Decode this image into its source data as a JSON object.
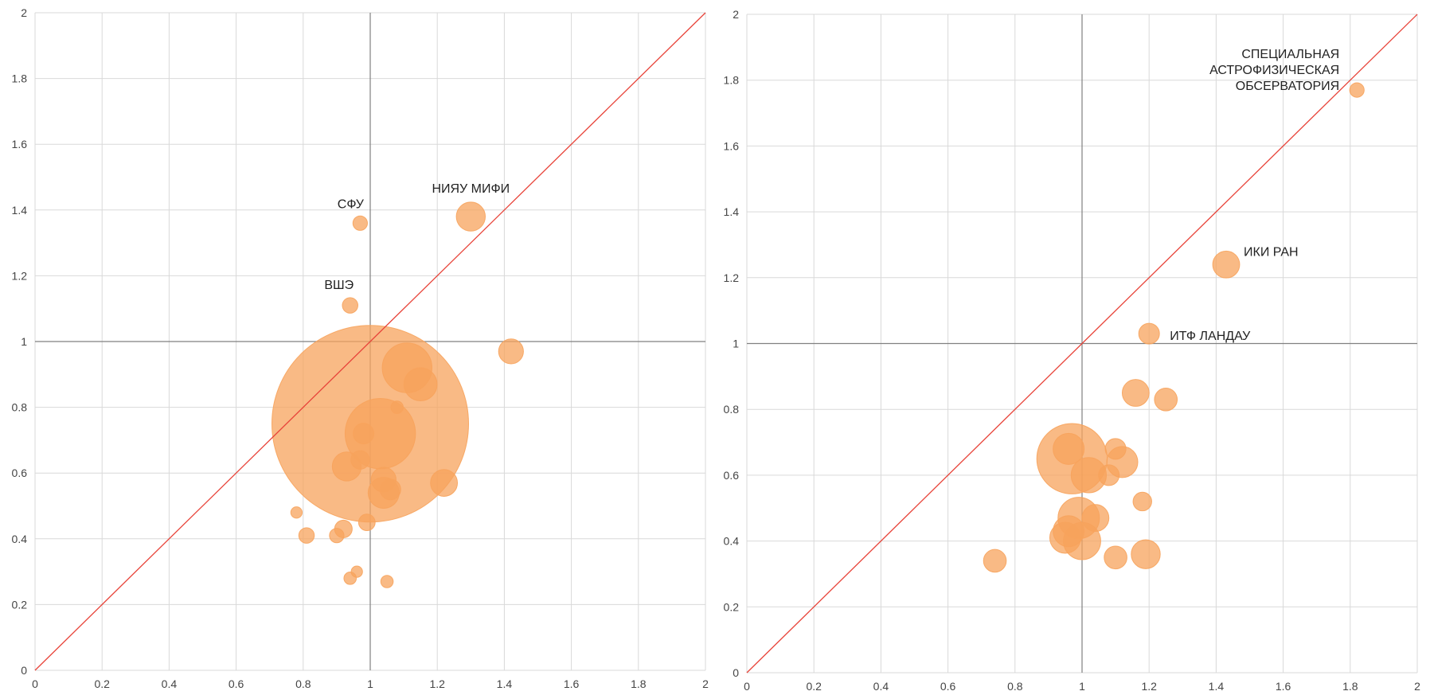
{
  "chart_data": [
    {
      "type": "scatter",
      "title": "",
      "xlabel": "",
      "ylabel": "",
      "xlim": [
        0,
        2
      ],
      "ylim": [
        0,
        2
      ],
      "xticks": [
        "0",
        "0.2",
        "0.4",
        "0.6",
        "0.8",
        "1",
        "1.2",
        "1.4",
        "1.6",
        "1.8",
        "2"
      ],
      "yticks": [
        "0",
        "0.2",
        "0.4",
        "0.6",
        "0.8",
        "1",
        "1.2",
        "1.4",
        "1.6",
        "1.8",
        "2"
      ],
      "grid": true,
      "reference_lines": {
        "diagonal": "y = x",
        "x": 1,
        "y": 1
      },
      "colors": {
        "bubble": "#f7a35c",
        "diagonal": "#e8443a",
        "reference": "#808080",
        "grid": "#d9d9d9"
      },
      "points": [
        {
          "x": 1.0,
          "y": 0.75,
          "size": 0.95
        },
        {
          "x": 1.03,
          "y": 0.72,
          "size": 0.34
        },
        {
          "x": 1.11,
          "y": 0.92,
          "size": 0.24
        },
        {
          "x": 1.15,
          "y": 0.87,
          "size": 0.16
        },
        {
          "x": 1.42,
          "y": 0.97,
          "size": 0.12
        },
        {
          "x": 1.3,
          "y": 1.38,
          "label": "НИЯУ МИФИ",
          "size": 0.14
        },
        {
          "x": 0.97,
          "y": 1.36,
          "label": "СФУ",
          "size": 0.07
        },
        {
          "x": 0.94,
          "y": 1.11,
          "label": "ВШЭ",
          "size": 0.075
        },
        {
          "x": 1.22,
          "y": 0.57,
          "size": 0.13
        },
        {
          "x": 1.08,
          "y": 0.8,
          "size": 0.06
        },
        {
          "x": 0.98,
          "y": 0.72,
          "size": 0.1
        },
        {
          "x": 0.93,
          "y": 0.62,
          "size": 0.14
        },
        {
          "x": 0.97,
          "y": 0.64,
          "size": 0.09
        },
        {
          "x": 1.04,
          "y": 0.58,
          "size": 0.12
        },
        {
          "x": 1.04,
          "y": 0.54,
          "size": 0.15
        },
        {
          "x": 1.06,
          "y": 0.55,
          "size": 0.1
        },
        {
          "x": 0.78,
          "y": 0.48,
          "size": 0.055
        },
        {
          "x": 0.81,
          "y": 0.41,
          "size": 0.075
        },
        {
          "x": 0.9,
          "y": 0.41,
          "size": 0.07
        },
        {
          "x": 0.92,
          "y": 0.43,
          "size": 0.085
        },
        {
          "x": 0.99,
          "y": 0.45,
          "size": 0.08
        },
        {
          "x": 0.96,
          "y": 0.3,
          "size": 0.055
        },
        {
          "x": 0.94,
          "y": 0.28,
          "size": 0.06
        },
        {
          "x": 1.05,
          "y": 0.27,
          "size": 0.06
        }
      ]
    },
    {
      "type": "scatter",
      "title": "",
      "xlabel": "",
      "ylabel": "",
      "xlim": [
        0,
        2
      ],
      "ylim": [
        0,
        2
      ],
      "xticks": [
        "0",
        "0.2",
        "0.4",
        "0.6",
        "0.8",
        "1",
        "1.2",
        "1.4",
        "1.6",
        "1.8",
        "2"
      ],
      "yticks": [
        "0",
        "0.2",
        "0.4",
        "0.6",
        "0.8",
        "1",
        "1.2",
        "1.4",
        "1.6",
        "1.8",
        "2"
      ],
      "grid": true,
      "reference_lines": {
        "diagonal": "y = x",
        "x": 1,
        "y": 1
      },
      "colors": {
        "bubble": "#f7a35c",
        "diagonal": "#e8443a",
        "reference": "#808080",
        "grid": "#d9d9d9"
      },
      "points": [
        {
          "x": 1.82,
          "y": 1.77,
          "label": [
            "СПЕЦИАЛЬНАЯ",
            "АСТРОФИЗИЧЕСКАЯ",
            "ОБСЕРВАТОРИЯ"
          ],
          "size": 0.07
        },
        {
          "x": 1.43,
          "y": 1.24,
          "label": "ИКИ РАН",
          "size": 0.13
        },
        {
          "x": 1.2,
          "y": 1.03,
          "label": "ИТФ ЛАНДАУ",
          "size": 0.1
        },
        {
          "x": 0.97,
          "y": 0.65,
          "size": 0.34
        },
        {
          "x": 0.96,
          "y": 0.68,
          "size": 0.15
        },
        {
          "x": 1.02,
          "y": 0.6,
          "size": 0.17
        },
        {
          "x": 1.1,
          "y": 0.68,
          "size": 0.1
        },
        {
          "x": 1.12,
          "y": 0.64,
          "size": 0.15
        },
        {
          "x": 1.08,
          "y": 0.6,
          "size": 0.1
        },
        {
          "x": 1.16,
          "y": 0.85,
          "size": 0.13
        },
        {
          "x": 1.25,
          "y": 0.83,
          "size": 0.11
        },
        {
          "x": 1.18,
          "y": 0.52,
          "size": 0.09
        },
        {
          "x": 1.0,
          "y": 0.4,
          "size": 0.18
        },
        {
          "x": 0.95,
          "y": 0.41,
          "size": 0.15
        },
        {
          "x": 0.96,
          "y": 0.43,
          "size": 0.15
        },
        {
          "x": 0.99,
          "y": 0.47,
          "size": 0.2
        },
        {
          "x": 1.04,
          "y": 0.47,
          "size": 0.13
        },
        {
          "x": 1.1,
          "y": 0.35,
          "size": 0.11
        },
        {
          "x": 1.19,
          "y": 0.36,
          "size": 0.14
        },
        {
          "x": 0.74,
          "y": 0.34,
          "size": 0.11
        }
      ]
    }
  ]
}
